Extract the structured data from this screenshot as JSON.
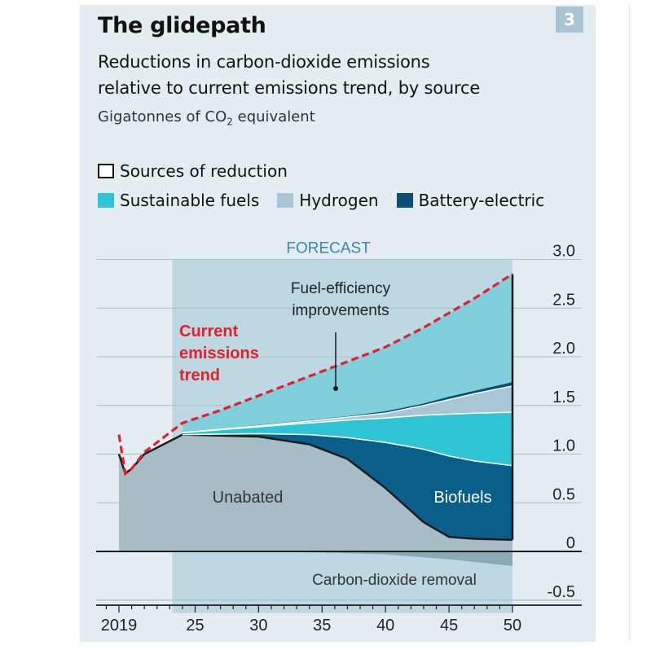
{
  "header": {
    "badge": "3",
    "title": "The glidepath",
    "subtitle_line1": "Reductions in carbon-dioxide emissions",
    "subtitle_line2": "relative to current emissions trend, by source",
    "unit_prefix": "Gigatonnes of CO",
    "unit_sub": "2",
    "unit_suffix": " equivalent"
  },
  "legend": {
    "outline_label": "Sources of reduction",
    "items": [
      {
        "label": "Sustainable fuels",
        "color": "#2ec4d6"
      },
      {
        "label": "Hydrogen",
        "color": "#a7c6d6"
      },
      {
        "label": "Battery-electric",
        "color": "#0b4f78"
      }
    ]
  },
  "chart_data": {
    "type": "area",
    "forecast_label": "FORECAST",
    "forecast_start": 2023.2,
    "x_ticks": [
      2019,
      2025,
      2030,
      2035,
      2040,
      2045,
      2050
    ],
    "x_tick_labels": [
      "2019",
      "25",
      "30",
      "35",
      "40",
      "45",
      "50"
    ],
    "y_ticks": [
      3.0,
      2.5,
      2.0,
      1.5,
      1.0,
      0.5,
      0,
      -0.5
    ],
    "y_tick_labels": [
      "3.0",
      "2.5",
      "2.0",
      "1.5",
      "1.0",
      "0.5",
      "0",
      "-0.5"
    ],
    "ylim": [
      -0.55,
      3.0
    ],
    "xlim": [
      2018,
      2050
    ],
    "annotations": {
      "current_trend": [
        "Current",
        "emissions",
        "trend"
      ],
      "fuel_efficiency": [
        "Fuel-efficiency",
        "improvements"
      ],
      "unabated": "Unabated",
      "biofuels": "Biofuels",
      "cdr": "Carbon-dioxide removal"
    },
    "colors": {
      "unabated": "#a8bcc6",
      "biofuels": "#0a5f8a",
      "sustainable": "#2ec4d6",
      "hydrogen": "#a7c6d6",
      "battery": "#0b4f78",
      "efficiency": "#7fd0dc",
      "cdr": "#8aa9b7",
      "trend": "#e3202a",
      "forecast_band": "#bdd7e3"
    },
    "series": {
      "unabated": {
        "x": [
          2019,
          2019.5,
          2020,
          2021,
          2024,
          2030,
          2034,
          2037,
          2040,
          2043,
          2045,
          2047,
          2050
        ],
        "y": [
          1.0,
          0.8,
          0.85,
          1.0,
          1.2,
          1.18,
          1.1,
          0.95,
          0.65,
          0.3,
          0.15,
          0.13,
          0.12
        ]
      },
      "biofuels_top": {
        "x": [
          2024,
          2030,
          2034,
          2037,
          2040,
          2043,
          2045,
          2047,
          2050
        ],
        "y": [
          1.2,
          1.21,
          1.2,
          1.17,
          1.12,
          1.05,
          0.98,
          0.93,
          0.88
        ]
      },
      "sustainable_top": {
        "x": [
          2024,
          2030,
          2034,
          2037,
          2040,
          2043,
          2045,
          2047,
          2050
        ],
        "y": [
          1.22,
          1.28,
          1.32,
          1.35,
          1.37,
          1.4,
          1.41,
          1.42,
          1.43
        ]
      },
      "hydrogen_top": {
        "x": [
          2024,
          2030,
          2034,
          2037,
          2040,
          2043,
          2045,
          2047,
          2050
        ],
        "y": [
          1.22,
          1.29,
          1.34,
          1.38,
          1.42,
          1.5,
          1.56,
          1.62,
          1.7
        ]
      },
      "battery_top": {
        "x": [
          2024,
          2030,
          2034,
          2037,
          2040,
          2043,
          2045,
          2047,
          2050
        ],
        "y": [
          1.22,
          1.3,
          1.35,
          1.39,
          1.44,
          1.52,
          1.59,
          1.65,
          1.74
        ]
      },
      "trend": {
        "x": [
          2019,
          2019.5,
          2020,
          2021,
          2024,
          2027,
          2030,
          2034,
          2037,
          2040,
          2043,
          2045,
          2047,
          2050
        ],
        "y": [
          1.2,
          0.8,
          0.85,
          1.02,
          1.32,
          1.45,
          1.6,
          1.8,
          1.95,
          2.1,
          2.3,
          2.45,
          2.6,
          2.85
        ]
      },
      "cdr": {
        "x": [
          2024,
          2035,
          2040,
          2045,
          2050
        ],
        "y": [
          0,
          -0.01,
          -0.03,
          -0.08,
          -0.15
        ]
      }
    }
  }
}
